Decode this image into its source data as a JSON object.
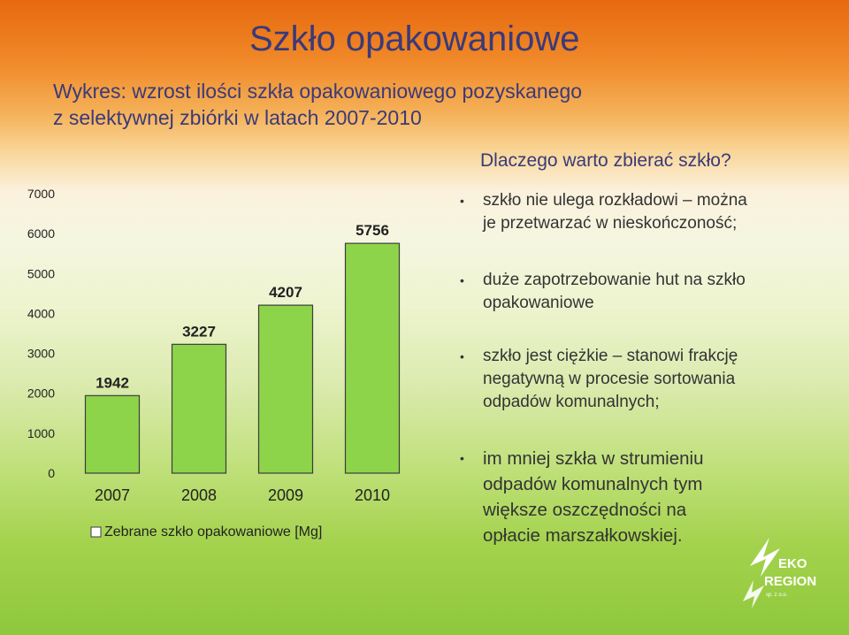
{
  "title": "Szkło opakowaniowe",
  "subtitle": [
    "Wykres: wzrost ilości szkła opakowaniowego pozyskanego",
    "z selektywnej zbiórki w latach 2007-2010"
  ],
  "panel": {
    "heading": "Dlaczego warto zbierać szkło?",
    "bullets": [
      [
        "szkło nie ulega rozkładowi – można",
        "je przetwarzać w nieskończoność;"
      ],
      [
        "duże zapotrzebowanie hut na szkło",
        "opakowaniowe"
      ],
      [
        "szkło jest ciężkie – stanowi frakcję",
        "negatywną w procesie sortowania",
        "odpadów komunalnych;"
      ],
      [
        "im mniej szkła w strumieniu",
        "odpadów komunalnych tym",
        "większe oszczędności na",
        "opłacie marszałkowskiej."
      ]
    ]
  },
  "logo": {
    "line1": "EKO",
    "line2": "REGION",
    "tagline": "sp. z o.o."
  },
  "colors": {
    "bar": "#8dd44a",
    "bar_stroke": "#3d3d3d",
    "text_dark": "#3a3a78"
  },
  "chart_data": {
    "type": "bar",
    "categories": [
      "2007",
      "2008",
      "2009",
      "2010"
    ],
    "series": [
      {
        "name": "Zebrane szkło opakowaniowe [Mg]",
        "values": [
          1942,
          3227,
          4207,
          5756
        ]
      }
    ],
    "ylim": [
      0,
      7000
    ],
    "yticks": [
      0,
      1000,
      2000,
      3000,
      4000,
      5000,
      6000,
      7000
    ],
    "data_labels": [
      "1942",
      "3227",
      "4207",
      "5756"
    ],
    "grid": false,
    "legend_position": "bottom"
  }
}
